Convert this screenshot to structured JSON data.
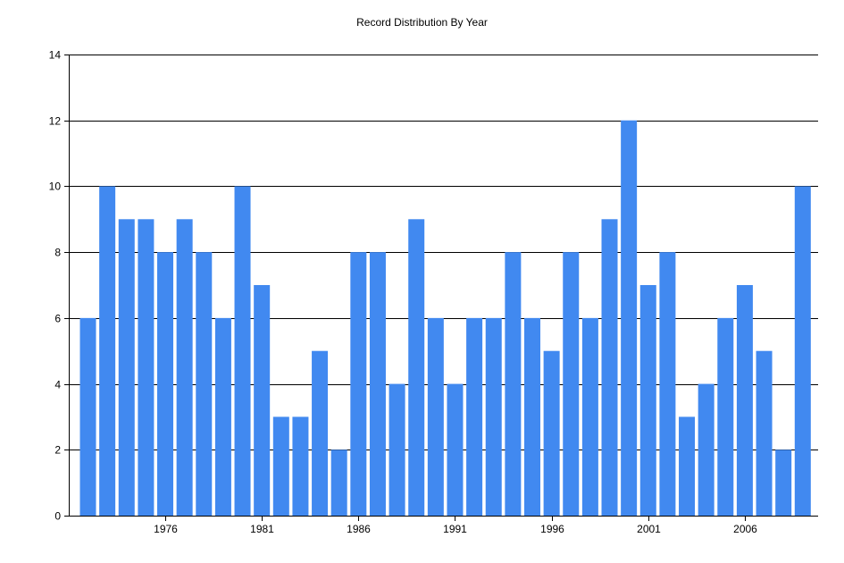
{
  "chart_data": {
    "type": "bar",
    "title": "Record Distribution By Year",
    "xlabel": "",
    "ylabel": "",
    "categories": [
      1972,
      1973,
      1974,
      1975,
      1976,
      1977,
      1978,
      1979,
      1980,
      1981,
      1982,
      1983,
      1984,
      1985,
      1986,
      1987,
      1988,
      1989,
      1990,
      1991,
      1992,
      1993,
      1994,
      1995,
      1996,
      1997,
      1998,
      1999,
      2000,
      2001,
      2002,
      2003,
      2004,
      2005,
      2006,
      2007,
      2008,
      2009
    ],
    "values": [
      6,
      10,
      9,
      9,
      8,
      9,
      8,
      6,
      10,
      7,
      3,
      3,
      5,
      2,
      8,
      8,
      4,
      9,
      6,
      4,
      6,
      6,
      8,
      6,
      5,
      8,
      6,
      9,
      12,
      7,
      8,
      3,
      4,
      6,
      7,
      5,
      2,
      10
    ],
    "ylim": [
      0,
      14
    ],
    "y_ticks": [
      0,
      2,
      4,
      6,
      8,
      10,
      12,
      14
    ],
    "x_tick_labels": [
      "1976",
      "1981",
      "1986",
      "1991",
      "1996",
      "2001",
      "2006"
    ],
    "grid": true,
    "legend": "none",
    "bar_color": "#4189F0"
  }
}
